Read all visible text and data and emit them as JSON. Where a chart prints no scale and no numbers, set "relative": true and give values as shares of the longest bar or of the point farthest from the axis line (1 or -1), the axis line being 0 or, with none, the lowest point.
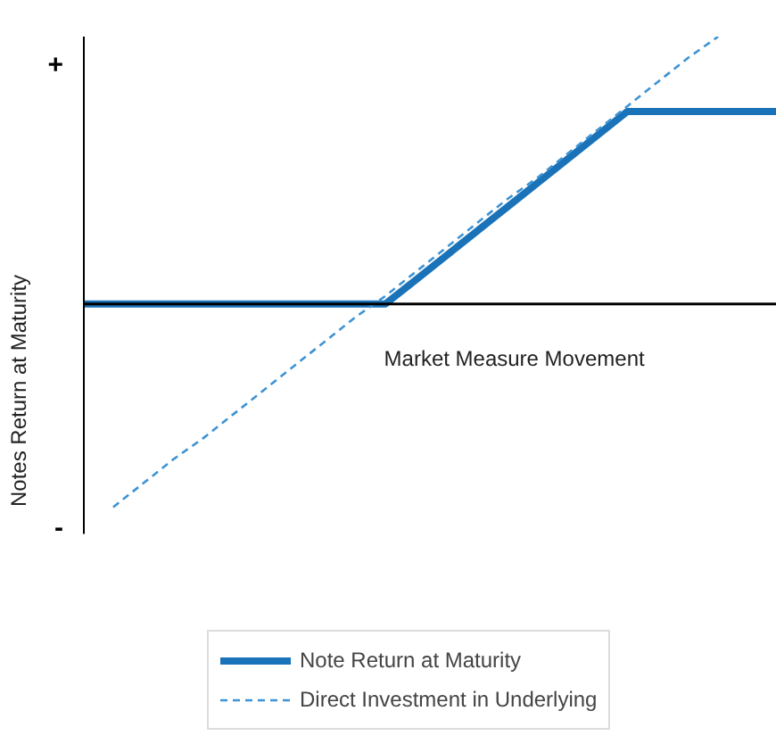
{
  "chart_data": {
    "type": "line",
    "relative": true,
    "ylabel": "Notes Return at Maturity",
    "xlabel": "Market Measure Movement",
    "annotations": [
      "+",
      "-"
    ],
    "categories": [
      null,
      null,
      null,
      null,
      null,
      null,
      null,
      null,
      null,
      null,
      null,
      null,
      null,
      null,
      null,
      null,
      null,
      null,
      null,
      null,
      null,
      null,
      null,
      null
    ],
    "series": [
      {
        "name": "Note Return at Maturity",
        "color": "#1a72b8",
        "line_style": "solid",
        "values": [
          0,
          0,
          0,
          0,
          0,
          0,
          0,
          0,
          0,
          0,
          0,
          0.09,
          0.18,
          0.27,
          0.36,
          0.45,
          0.54,
          0.63,
          0.72,
          0.72,
          0.72,
          0.72,
          0.72,
          0.72
        ]
      },
      {
        "name": "Direct Investment in Underlying",
        "color": "#3d93d4",
        "line_style": "dashed",
        "values": [
          null,
          -0.76,
          -0.67,
          -0.58,
          -0.5,
          -0.41,
          -0.32,
          -0.23,
          -0.14,
          -0.05,
          0.03,
          0.12,
          0.21,
          0.3,
          0.39,
          0.47,
          0.56,
          0.65,
          0.74,
          0.83,
          0.92,
          1.0,
          null,
          null
        ]
      }
    ],
    "legend": "bottom"
  }
}
